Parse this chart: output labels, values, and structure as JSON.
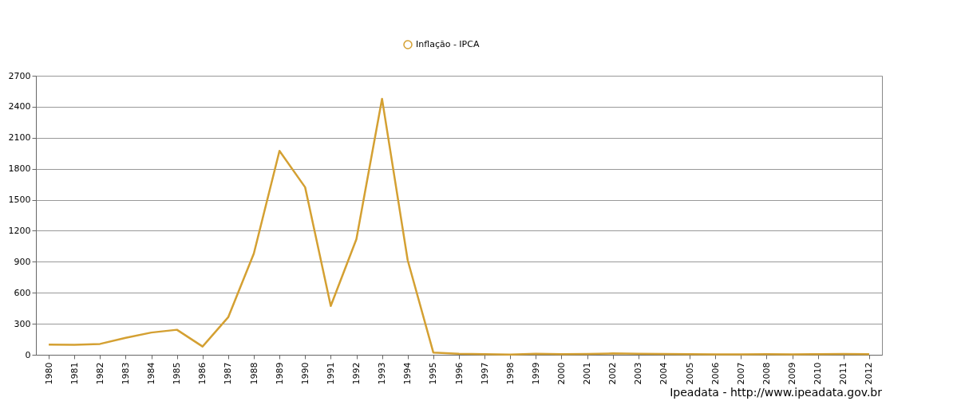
{
  "chart_data": {
    "type": "line",
    "categories": [
      "1980",
      "1981",
      "1982",
      "1983",
      "1984",
      "1985",
      "1986",
      "1987",
      "1988",
      "1989",
      "1990",
      "1991",
      "1992",
      "1993",
      "1994",
      "1995",
      "1996",
      "1997",
      "1998",
      "1999",
      "2000",
      "2001",
      "2002",
      "2003",
      "2004",
      "2005",
      "2006",
      "2007",
      "2008",
      "2009",
      "2010",
      "2011",
      "2012"
    ],
    "series": [
      {
        "name": "Inflação - IPCA",
        "color": "#d4a032",
        "values": [
          99,
          96,
          105,
          164,
          215,
          242,
          80,
          363,
          980,
          1973,
          1621,
          473,
          1119,
          2477,
          916,
          22,
          10,
          5,
          2,
          9,
          6,
          8,
          13,
          9,
          8,
          6,
          3,
          4,
          6,
          4,
          6,
          7,
          6
        ]
      }
    ],
    "ylim": [
      0,
      2700
    ],
    "yticks": [
      0,
      300,
      600,
      900,
      1200,
      1500,
      1800,
      2100,
      2400,
      2700
    ],
    "grid": "y",
    "legend": "top",
    "annotations": [
      "Ipeadata - http://www.ipeadata.gov.br"
    ]
  }
}
